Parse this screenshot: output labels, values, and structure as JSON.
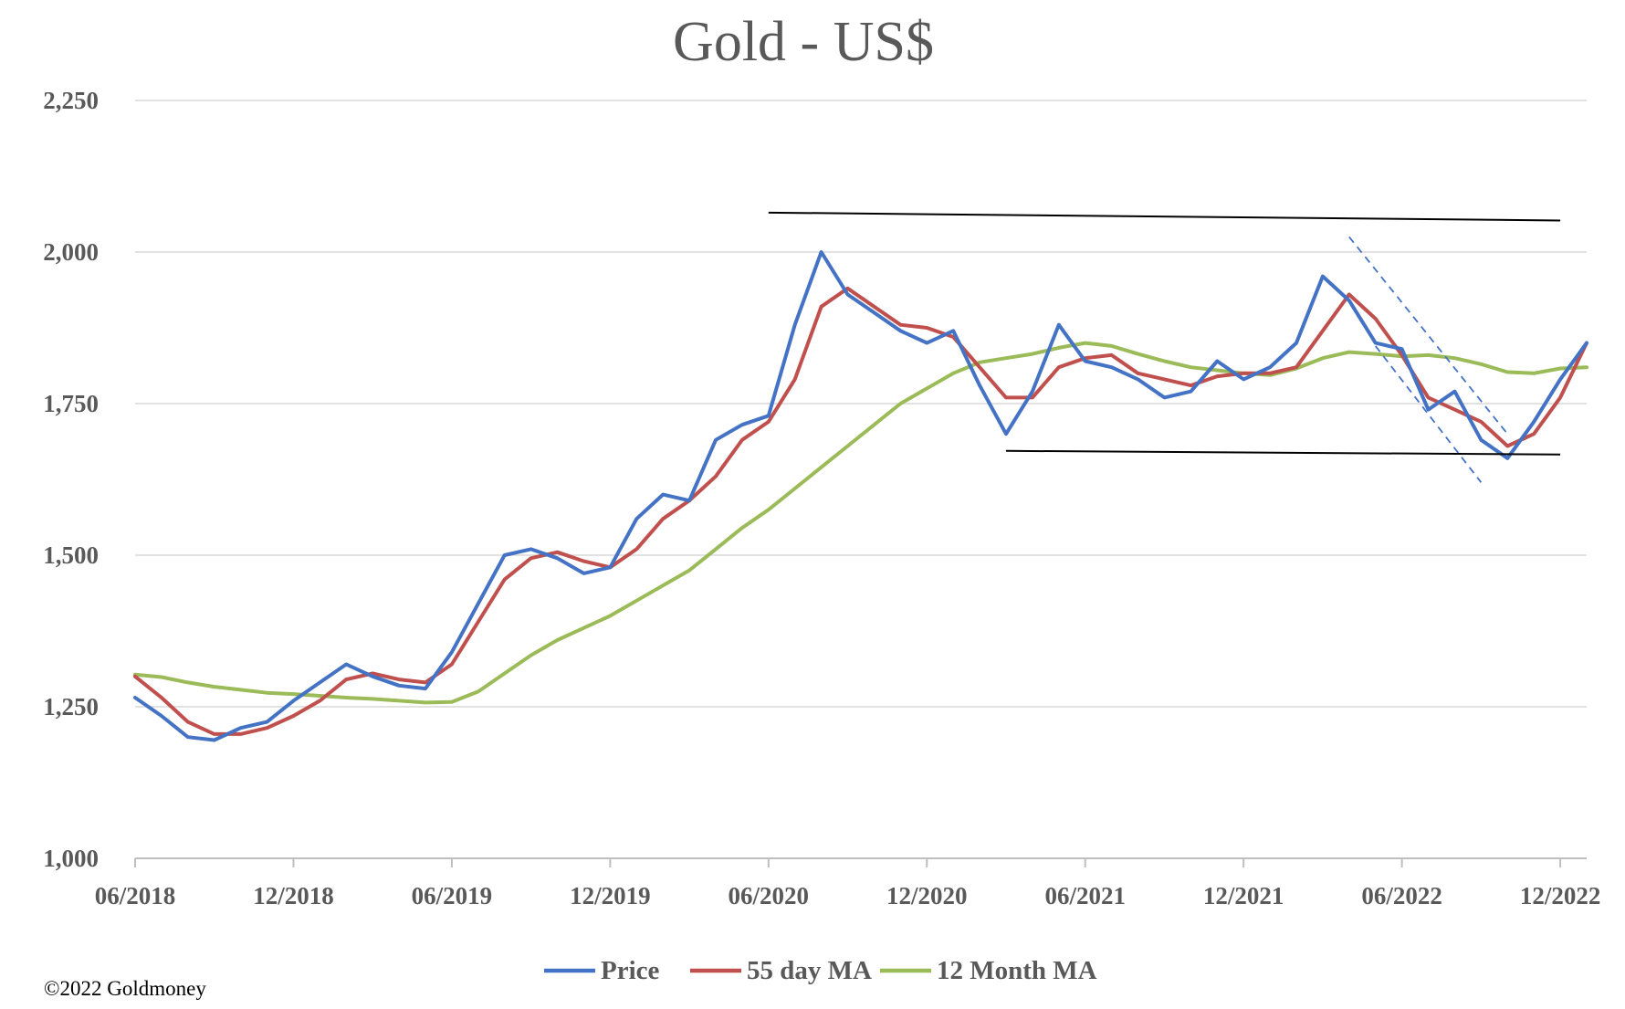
{
  "chart_data": {
    "type": "line",
    "title": "Gold - US$",
    "xlabel": "",
    "ylabel": "",
    "ylim": [
      1000,
      2250
    ],
    "yticks": [
      "1,000",
      "1,250",
      "1,500",
      "1,750",
      "2,000",
      "2,250"
    ],
    "ytick_values": [
      1000,
      1250,
      1500,
      1750,
      2000,
      2250
    ],
    "xlim": [
      "2018-06",
      "2023-01"
    ],
    "xticks": [
      "06/2018",
      "12/2018",
      "06/2019",
      "12/2019",
      "06/2020",
      "12/2020",
      "06/2021",
      "12/2021",
      "06/2022",
      "12/2022"
    ],
    "xtick_dates": [
      "2018-06",
      "2018-12",
      "2019-06",
      "2019-12",
      "2020-06",
      "2020-12",
      "2021-06",
      "2021-12",
      "2022-06",
      "2022-12"
    ],
    "grid": true,
    "legend_position": "bottom",
    "copyright": "©2022 Goldmoney",
    "series": [
      {
        "name": "Price",
        "color": "#4472C4",
        "x": [
          "2018-06",
          "2018-07",
          "2018-08",
          "2018-09",
          "2018-10",
          "2018-11",
          "2018-12",
          "2019-01",
          "2019-02",
          "2019-03",
          "2019-04",
          "2019-05",
          "2019-06",
          "2019-07",
          "2019-08",
          "2019-09",
          "2019-10",
          "2019-11",
          "2019-12",
          "2020-01",
          "2020-02",
          "2020-03",
          "2020-04",
          "2020-05",
          "2020-06",
          "2020-07",
          "2020-08",
          "2020-09",
          "2020-10",
          "2020-11",
          "2020-12",
          "2021-01",
          "2021-02",
          "2021-03",
          "2021-04",
          "2021-05",
          "2021-06",
          "2021-07",
          "2021-08",
          "2021-09",
          "2021-10",
          "2021-11",
          "2021-12",
          "2022-01",
          "2022-02",
          "2022-03",
          "2022-04",
          "2022-05",
          "2022-06",
          "2022-07",
          "2022-08",
          "2022-09",
          "2022-10",
          "2022-11",
          "2022-12",
          "2023-01"
        ],
        "values": [
          1265,
          1235,
          1200,
          1195,
          1215,
          1225,
          1260,
          1290,
          1320,
          1300,
          1285,
          1280,
          1340,
          1420,
          1500,
          1510,
          1495,
          1470,
          1480,
          1560,
          1600,
          1590,
          1690,
          1715,
          1730,
          1880,
          2000,
          1930,
          1900,
          1870,
          1850,
          1870,
          1780,
          1700,
          1770,
          1880,
          1820,
          1810,
          1790,
          1760,
          1770,
          1820,
          1790,
          1810,
          1850,
          1960,
          1920,
          1850,
          1840,
          1740,
          1770,
          1690,
          1660,
          1720,
          1790,
          1850
        ]
      },
      {
        "name": "55 day MA",
        "color": "#C0504D",
        "x": [
          "2018-06",
          "2018-07",
          "2018-08",
          "2018-09",
          "2018-10",
          "2018-11",
          "2018-12",
          "2019-01",
          "2019-02",
          "2019-03",
          "2019-04",
          "2019-05",
          "2019-06",
          "2019-07",
          "2019-08",
          "2019-09",
          "2019-10",
          "2019-11",
          "2019-12",
          "2020-01",
          "2020-02",
          "2020-03",
          "2020-04",
          "2020-05",
          "2020-06",
          "2020-07",
          "2020-08",
          "2020-09",
          "2020-10",
          "2020-11",
          "2020-12",
          "2021-01",
          "2021-02",
          "2021-03",
          "2021-04",
          "2021-05",
          "2021-06",
          "2021-07",
          "2021-08",
          "2021-09",
          "2021-10",
          "2021-11",
          "2021-12",
          "2022-01",
          "2022-02",
          "2022-03",
          "2022-04",
          "2022-05",
          "2022-06",
          "2022-07",
          "2022-08",
          "2022-09",
          "2022-10",
          "2022-11",
          "2022-12",
          "2023-01"
        ],
        "values": [
          1300,
          1265,
          1225,
          1205,
          1205,
          1215,
          1235,
          1260,
          1295,
          1305,
          1295,
          1290,
          1320,
          1390,
          1460,
          1495,
          1505,
          1490,
          1480,
          1510,
          1560,
          1590,
          1630,
          1690,
          1720,
          1790,
          1910,
          1940,
          1910,
          1880,
          1875,
          1860,
          1810,
          1760,
          1760,
          1810,
          1825,
          1830,
          1800,
          1790,
          1780,
          1795,
          1800,
          1800,
          1810,
          1870,
          1930,
          1890,
          1830,
          1760,
          1740,
          1720,
          1680,
          1700,
          1760,
          1850
        ]
      },
      {
        "name": "12 Month MA",
        "color": "#9BBB59",
        "x": [
          "2018-06",
          "2018-07",
          "2018-08",
          "2018-09",
          "2018-10",
          "2018-11",
          "2018-12",
          "2019-01",
          "2019-02",
          "2019-03",
          "2019-04",
          "2019-05",
          "2019-06",
          "2019-07",
          "2019-08",
          "2019-09",
          "2019-10",
          "2019-11",
          "2019-12",
          "2020-01",
          "2020-02",
          "2020-03",
          "2020-04",
          "2020-05",
          "2020-06",
          "2020-07",
          "2020-08",
          "2020-09",
          "2020-10",
          "2020-11",
          "2020-12",
          "2021-01",
          "2021-02",
          "2021-03",
          "2021-04",
          "2021-05",
          "2021-06",
          "2021-07",
          "2021-08",
          "2021-09",
          "2021-10",
          "2021-11",
          "2021-12",
          "2022-01",
          "2022-02",
          "2022-03",
          "2022-04",
          "2022-05",
          "2022-06",
          "2022-07",
          "2022-08",
          "2022-09",
          "2022-10",
          "2022-11",
          "2022-12",
          "2023-01"
        ],
        "values": [
          1303,
          1299,
          1290,
          1283,
          1278,
          1273,
          1271,
          1268,
          1265,
          1263,
          1260,
          1257,
          1258,
          1275,
          1305,
          1335,
          1360,
          1380,
          1400,
          1425,
          1450,
          1475,
          1510,
          1545,
          1575,
          1610,
          1645,
          1680,
          1715,
          1750,
          1775,
          1800,
          1818,
          1825,
          1832,
          1842,
          1850,
          1845,
          1832,
          1820,
          1810,
          1805,
          1800,
          1797,
          1808,
          1825,
          1835,
          1832,
          1828,
          1830,
          1825,
          1815,
          1802,
          1800,
          1808,
          1810
        ]
      }
    ],
    "annotations": [
      {
        "type": "trendline",
        "style": "solid",
        "color": "#000000",
        "x": [
          "2020-06",
          "2022-12"
        ],
        "y": [
          2065,
          2052
        ]
      },
      {
        "type": "trendline",
        "style": "solid",
        "color": "#000000",
        "x": [
          "2021-03",
          "2022-12"
        ],
        "y": [
          1672,
          1666
        ]
      },
      {
        "type": "trendline",
        "style": "dashed",
        "color": "#4472C4",
        "x": [
          "2022-04",
          "2022-10"
        ],
        "y": [
          2025,
          1700
        ]
      },
      {
        "type": "trendline",
        "style": "dashed",
        "color": "#4472C4",
        "x": [
          "2022-05",
          "2022-09"
        ],
        "y": [
          1845,
          1620
        ]
      }
    ]
  }
}
